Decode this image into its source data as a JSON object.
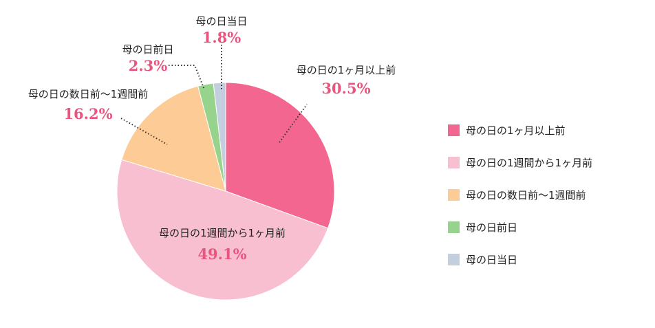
{
  "chart_data": {
    "type": "pie",
    "title": "",
    "legend_position": "right",
    "start_angle_deg": 0,
    "direction": "clockwise",
    "slices": [
      {
        "label": "母の日の1ヶ月以上前",
        "value": 30.5,
        "value_label": "30.5%",
        "color": "#f26690"
      },
      {
        "label": "母の日の1週間から1ヶ月前",
        "value": 49.1,
        "value_label": "49.1%",
        "color": "#f7bfd0"
      },
      {
        "label": "母の日の数日前〜1週間前",
        "value": 16.2,
        "value_label": "16.2%",
        "color": "#fdcb95"
      },
      {
        "label": "母の日前日",
        "value": 2.3,
        "value_label": "2.3%",
        "color": "#98d38e"
      },
      {
        "label": "母の日当日",
        "value": 1.8,
        "value_label": "1.8%",
        "color": "#c3cedf"
      }
    ]
  }
}
